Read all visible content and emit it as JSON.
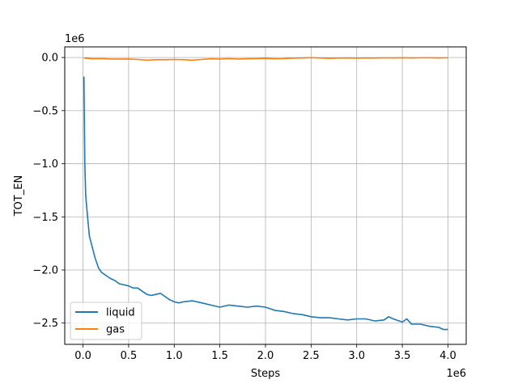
{
  "chart_data": {
    "type": "line",
    "title": "",
    "xlabel": "Steps",
    "ylabel": "TOT_EN",
    "x_offset_text": "1e6",
    "y_offset_text": "1e6",
    "xlim": [
      -0.2,
      4.2
    ],
    "ylim": [
      -2.7,
      0.1
    ],
    "xticks": [
      0.0,
      0.5,
      1.0,
      1.5,
      2.0,
      2.5,
      3.0,
      3.5,
      4.0
    ],
    "xtick_labels": [
      "0.0",
      "0.5",
      "1.0",
      "1.5",
      "2.0",
      "2.5",
      "3.0",
      "3.5",
      "4.0"
    ],
    "yticks": [
      0.0,
      -0.5,
      -1.0,
      -1.5,
      -2.0,
      -2.5
    ],
    "ytick_labels": [
      "0.0",
      "−0.5",
      "−1.0",
      "−1.5",
      "−2.0",
      "−2.5"
    ],
    "grid": true,
    "legend_position": "lower-left",
    "series": [
      {
        "name": "liquid",
        "color": "#1f77b4",
        "x": [
          0.01,
          0.02,
          0.03,
          0.05,
          0.07,
          0.1,
          0.13,
          0.17,
          0.2,
          0.25,
          0.3,
          0.35,
          0.4,
          0.45,
          0.5,
          0.55,
          0.6,
          0.65,
          0.7,
          0.75,
          0.8,
          0.85,
          0.9,
          0.95,
          1.0,
          1.05,
          1.1,
          1.2,
          1.3,
          1.4,
          1.5,
          1.6,
          1.7,
          1.8,
          1.9,
          2.0,
          2.1,
          2.2,
          2.3,
          2.4,
          2.5,
          2.6,
          2.7,
          2.8,
          2.9,
          3.0,
          3.1,
          3.2,
          3.3,
          3.35,
          3.4,
          3.5,
          3.55,
          3.6,
          3.7,
          3.8,
          3.9,
          3.95,
          4.0
        ],
        "y": [
          -0.18,
          -1.0,
          -1.3,
          -1.5,
          -1.68,
          -1.78,
          -1.88,
          -1.98,
          -2.02,
          -2.05,
          -2.08,
          -2.1,
          -2.13,
          -2.14,
          -2.15,
          -2.17,
          -2.17,
          -2.2,
          -2.23,
          -2.24,
          -2.23,
          -2.22,
          -2.25,
          -2.28,
          -2.3,
          -2.31,
          -2.3,
          -2.29,
          -2.31,
          -2.33,
          -2.35,
          -2.33,
          -2.34,
          -2.35,
          -2.34,
          -2.35,
          -2.38,
          -2.39,
          -2.41,
          -2.42,
          -2.44,
          -2.45,
          -2.45,
          -2.46,
          -2.47,
          -2.46,
          -2.46,
          -2.48,
          -2.47,
          -2.44,
          -2.46,
          -2.49,
          -2.46,
          -2.51,
          -2.51,
          -2.53,
          -2.54,
          -2.56,
          -2.56
        ]
      },
      {
        "name": "gas",
        "color": "#ff7f0e",
        "x": [
          0.01,
          0.1,
          0.2,
          0.3,
          0.4,
          0.5,
          0.6,
          0.7,
          0.8,
          0.9,
          1.0,
          1.1,
          1.2,
          1.3,
          1.4,
          1.5,
          1.6,
          1.7,
          1.8,
          1.9,
          2.0,
          2.1,
          2.2,
          2.3,
          2.4,
          2.5,
          2.6,
          2.7,
          2.8,
          2.9,
          3.0,
          3.1,
          3.2,
          3.3,
          3.4,
          3.5,
          3.6,
          3.7,
          3.8,
          3.9,
          4.0
        ],
        "y": [
          -0.005,
          -0.012,
          -0.01,
          -0.015,
          -0.015,
          -0.013,
          -0.018,
          -0.025,
          -0.02,
          -0.02,
          -0.018,
          -0.02,
          -0.025,
          -0.018,
          -0.012,
          -0.015,
          -0.01,
          -0.015,
          -0.012,
          -0.01,
          -0.008,
          -0.012,
          -0.01,
          -0.006,
          -0.004,
          -0.002,
          -0.004,
          -0.008,
          -0.005,
          -0.004,
          -0.006,
          -0.004,
          -0.005,
          -0.003,
          -0.004,
          -0.002,
          -0.004,
          -0.003,
          -0.002,
          -0.004,
          -0.003
        ]
      }
    ]
  }
}
